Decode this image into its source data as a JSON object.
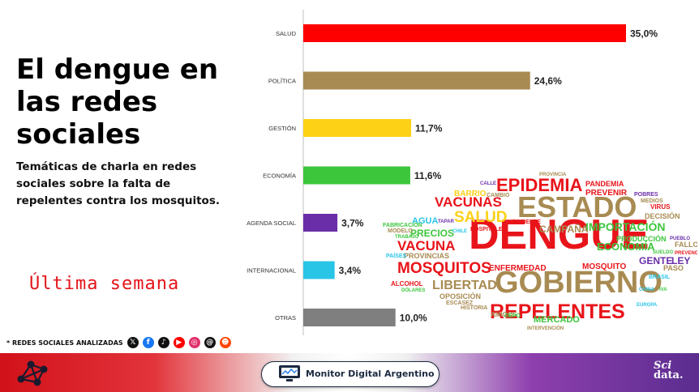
{
  "title": "El dengue en las redes sociales",
  "subtitle": "Temáticas de charla en redes sociales sobre la falta de repelentes contra los mosquitos.",
  "period": "Última semana",
  "chart_data": {
    "type": "bar",
    "orientation": "horizontal",
    "categories": [
      "SALUD",
      "POLÍTICA",
      "GESTIÓN",
      "ECONOMÍA",
      "AGENDA SOCIAL",
      "INTERNACIONAL",
      "OTRAS"
    ],
    "values": [
      35.0,
      24.6,
      11.7,
      11.6,
      3.7,
      3.4,
      10.0
    ],
    "value_labels": [
      "35,0%",
      "24,6%",
      "11,7%",
      "11,6%",
      "3,7%",
      "3,4%",
      "10,0%"
    ],
    "colors": [
      "#ff0000",
      "#a88b52",
      "#fcd116",
      "#3cc63c",
      "#6a2ea8",
      "#29c5e6",
      "#7f7f7f"
    ],
    "xlim": [
      0,
      35
    ],
    "grid": false,
    "legend": "none"
  },
  "wordcloud": [
    {
      "text": "DENGUE",
      "color": "#e8141a"
    },
    {
      "text": "GOBIERNO",
      "color": "#a88b52"
    },
    {
      "text": "ESTADO",
      "color": "#a88b52"
    },
    {
      "text": "EPIDEMIA",
      "color": "#e8141a"
    },
    {
      "text": "REPELENTES",
      "color": "#e8141a"
    },
    {
      "text": "MOSQUITOS",
      "color": "#e8141a"
    },
    {
      "text": "SALUD",
      "color": "#fcd116"
    },
    {
      "text": "VACUNAS",
      "color": "#e8141a"
    },
    {
      "text": "VACUNA",
      "color": "#e8141a"
    },
    {
      "text": "LIBERTAD",
      "color": "#a88b52"
    },
    {
      "text": "IMPORTACIÓN",
      "color": "#3cc63c"
    },
    {
      "text": "ECONOMÍA",
      "color": "#3cc63c"
    },
    {
      "text": "GENTE",
      "color": "#6a2ea8"
    },
    {
      "text": "LEY",
      "color": "#6a2ea8"
    },
    {
      "text": "CAMPAÑA",
      "color": "#a88b52"
    },
    {
      "text": "PRECIOS",
      "color": "#3cc63c"
    },
    {
      "text": "MERCADO",
      "color": "#3cc63c"
    },
    {
      "text": "ENFERMEDAD",
      "color": "#e8141a"
    },
    {
      "text": "PRODUCCIÓN",
      "color": "#3cc63c"
    },
    {
      "text": "DECISIÓN",
      "color": "#a88b52"
    },
    {
      "text": "PANDEMIA",
      "color": "#e8141a"
    },
    {
      "text": "PREVENIR",
      "color": "#e8141a"
    },
    {
      "text": "BARRIO",
      "color": "#fcd116"
    },
    {
      "text": "AGUA",
      "color": "#29c5e6"
    },
    {
      "text": "MOSQUITO",
      "color": "#e8141a"
    },
    {
      "text": "OPOSICIÓN",
      "color": "#a88b52"
    },
    {
      "text": "HISTORIA",
      "color": "#a88b52"
    },
    {
      "text": "AMIGOS",
      "color": "#a88b52"
    },
    {
      "text": "FALLO",
      "color": "#a88b52"
    },
    {
      "text": "PASO",
      "color": "#a88b52"
    },
    {
      "text": "PROVINCIAS",
      "color": "#a88b52"
    },
    {
      "text": "PAÍSES",
      "color": "#29c5e6"
    },
    {
      "text": "ALCOHOL",
      "color": "#e8141a"
    },
    {
      "text": "ESCASEZ",
      "color": "#a88b52"
    },
    {
      "text": "FABRICACIÓN",
      "color": "#3cc63c"
    },
    {
      "text": "HOSPITALES",
      "color": "#e8141a"
    },
    {
      "text": "PACIENTE",
      "color": "#e8141a"
    },
    {
      "text": "CAMBIO",
      "color": "#a88b52"
    },
    {
      "text": "MEDIOS",
      "color": "#a88b52"
    },
    {
      "text": "VIRUS",
      "color": "#e8141a"
    },
    {
      "text": "POBRES",
      "color": "#6a2ea8"
    },
    {
      "text": "BRASIL",
      "color": "#29c5e6"
    },
    {
      "text": "EUROPA",
      "color": "#29c5e6"
    },
    {
      "text": "CHINA",
      "color": "#29c5e6"
    },
    {
      "text": "IVA",
      "color": "#3cc63c"
    },
    {
      "text": "CEPO",
      "color": "#3cc63c"
    },
    {
      "text": "INTERVENCIÓN",
      "color": "#a88b52"
    },
    {
      "text": "PUEBLO",
      "color": "#6a2ea8"
    },
    {
      "text": "SUELDO",
      "color": "#3cc63c"
    },
    {
      "text": "DÓLARES",
      "color": "#3cc63c"
    },
    {
      "text": "MODELO",
      "color": "#a88b52"
    },
    {
      "text": "TRABAJO",
      "color": "#3cc63c"
    },
    {
      "text": "CHILE",
      "color": "#29c5e6"
    },
    {
      "text": "TAPAR",
      "color": "#6a2ea8"
    },
    {
      "text": "PROVINCIA",
      "color": "#a88b52"
    },
    {
      "text": "CALLE",
      "color": "#6a2ea8"
    },
    {
      "text": "PREVENCIÓN",
      "color": "#e8141a"
    }
  ],
  "networks": {
    "label": "* REDES SOCIALES ANALIZADAS",
    "icons": [
      {
        "name": "x-icon",
        "glyph": "𝕏",
        "color": "#111111"
      },
      {
        "name": "facebook-icon",
        "glyph": "f",
        "color": "#1877f2"
      },
      {
        "name": "tiktok-icon",
        "glyph": "♪",
        "color": "#111111"
      },
      {
        "name": "youtube-icon",
        "glyph": "▶",
        "color": "#ff0000"
      },
      {
        "name": "instagram-icon",
        "glyph": "◎",
        "color": "#e1306c"
      },
      {
        "name": "threads-icon",
        "glyph": "@",
        "color": "#111111"
      },
      {
        "name": "reddit-icon",
        "glyph": "☻",
        "color": "#ff4500"
      }
    ]
  },
  "footer": {
    "badge_text": "Monitor Digital Argentino",
    "brand_line1": "Sci",
    "brand_line2": "data."
  }
}
